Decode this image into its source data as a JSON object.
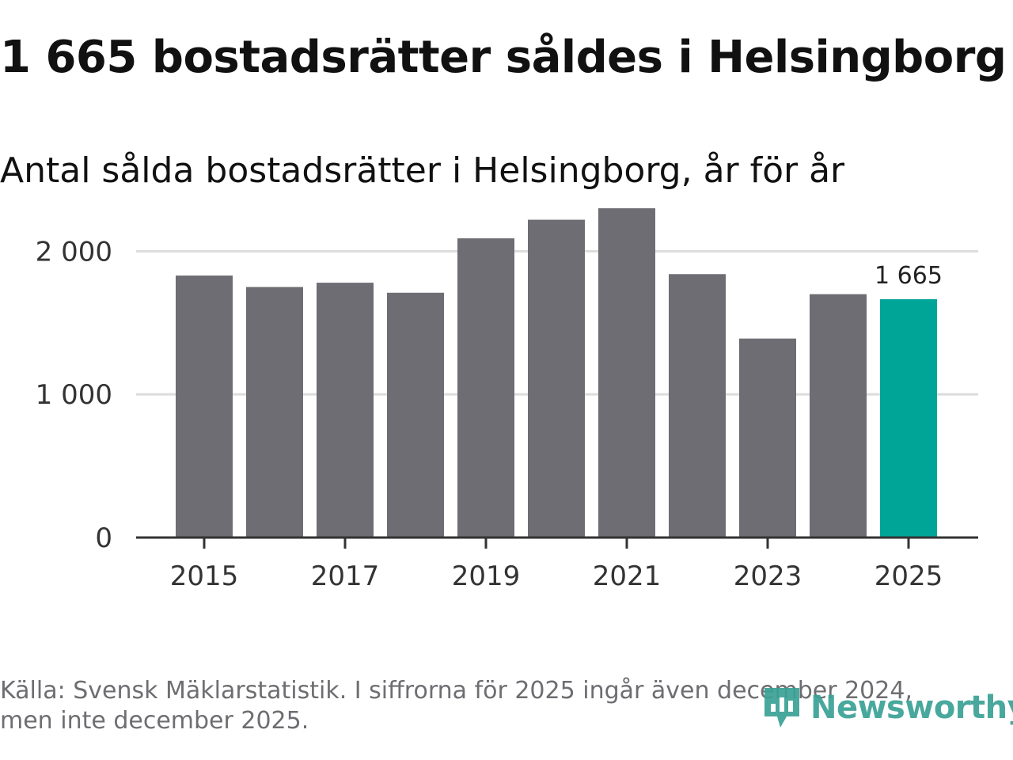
{
  "title": "1 665 bostadsrätter såldes i Helsingborg",
  "subtitle": "Antal sålda bostadsrätter i Helsingborg, år för år",
  "footnote": "Källa: Svensk Mäklarstatistik. I siffrorna för 2025 ingår även december 2024, men inte december 2025.",
  "brand": {
    "name": "Newsworthy",
    "icon": "newsworthy-logo-icon"
  },
  "colors": {
    "bar": "#6e6d73",
    "highlight": "#00a598",
    "grid": "#dcdcdc",
    "axis": "#333333",
    "brand": "#3aa195"
  },
  "chart_data": {
    "type": "bar",
    "title": "1 665 bostadsrätter såldes i Helsingborg",
    "subtitle": "Antal sålda bostadsrätter i Helsingborg, år för år",
    "xlabel": "",
    "ylabel": "",
    "categories": [
      "2015",
      "2016",
      "2017",
      "2018",
      "2019",
      "2020",
      "2021",
      "2022",
      "2023",
      "2024",
      "2025"
    ],
    "values": [
      1830,
      1750,
      1780,
      1710,
      2090,
      2220,
      2300,
      1840,
      1390,
      1700,
      1665
    ],
    "x_tick_labels": [
      "2015",
      "2017",
      "2019",
      "2021",
      "2023",
      "2025"
    ],
    "y_ticks": [
      0,
      1000,
      2000
    ],
    "y_tick_labels": [
      "0",
      "1 000",
      "2 000"
    ],
    "ylim": [
      0,
      2400
    ],
    "grid": true,
    "highlight_category": "2025",
    "annotation": {
      "category": "2025",
      "text": "1 665"
    }
  }
}
